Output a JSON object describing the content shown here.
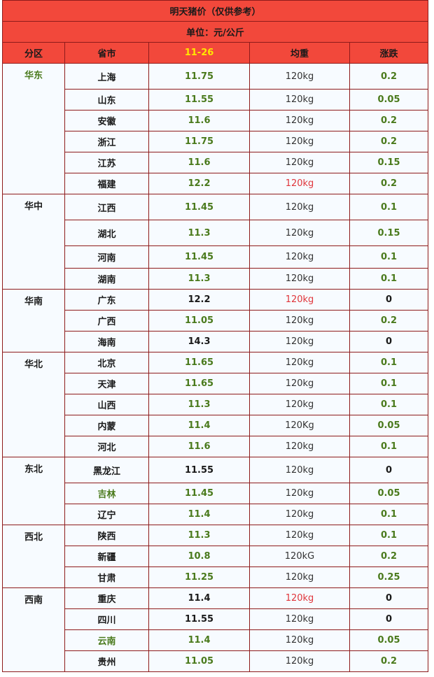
{
  "header": {
    "title": "明天猪价（仅供参考）",
    "unit": "单位：元/公斤",
    "columns": [
      "分区",
      "省市",
      "11-26",
      "均重",
      "涨跌"
    ]
  },
  "palette": {
    "green": "#4a7a1c",
    "red": "#e0353b",
    "black": "#1a1a1a",
    "yellow": "#ffe600",
    "region_green": "#4a7a1c"
  },
  "table": {
    "groups": [
      {
        "region": "华东",
        "region_color": "region_green",
        "rows": [
          {
            "province": "上海",
            "price": 11.75,
            "weight": "120kg",
            "change": 0.2
          },
          {
            "province": "山东",
            "price": 11.55,
            "weight": "120kg",
            "change": 0.05
          },
          {
            "province": "安徽",
            "price": 11.6,
            "weight": "120kg",
            "change": 0.2
          },
          {
            "province": "浙江",
            "price": 11.75,
            "weight": "120kg",
            "change": 0.2
          },
          {
            "province": "江苏",
            "price": 11.6,
            "weight": "120kg",
            "change": 0.15
          },
          {
            "province": "福建",
            "price": 12.2,
            "weight": "120kg",
            "change": 0.2,
            "weight_color": "red"
          }
        ]
      },
      {
        "region": "华中",
        "rows": [
          {
            "province": "江西",
            "price": 11.45,
            "weight": "120kg",
            "change": 0.1
          },
          {
            "province": "湖北",
            "price": 11.3,
            "weight": "120kg",
            "change": 0.15
          },
          {
            "province": "河南",
            "price": 11.45,
            "weight": "120kg",
            "change": 0.1
          },
          {
            "province": "湖南",
            "price": 11.3,
            "weight": "120kg",
            "change": 0.1
          }
        ]
      },
      {
        "region": "华南",
        "rows": [
          {
            "province": "广东",
            "price": 12.2,
            "weight": "120kg",
            "change": 0,
            "price_color": "black",
            "weight_color": "red",
            "change_color": "black"
          },
          {
            "province": "广西",
            "price": 11.05,
            "weight": "120kg",
            "change": 0.2
          },
          {
            "province": "海南",
            "price": 14.3,
            "weight": "120kg",
            "change": 0,
            "price_color": "black",
            "change_color": "black"
          }
        ]
      },
      {
        "region": "华北",
        "rows": [
          {
            "province": "北京",
            "price": 11.65,
            "weight": "120kg",
            "change": 0.1
          },
          {
            "province": "天津",
            "price": 11.65,
            "weight": "120kg",
            "change": 0.1
          },
          {
            "province": "山西",
            "price": 11.3,
            "weight": "120kg",
            "change": 0.1
          },
          {
            "province": "内蒙",
            "price": 11.4,
            "weight": "120Kg",
            "change": 0.05
          },
          {
            "province": "河北",
            "price": 11.6,
            "weight": "120kg",
            "change": 0.1
          }
        ]
      },
      {
        "region": "东北",
        "rows": [
          {
            "province": "黑龙江",
            "price": 11.55,
            "weight": "120kg",
            "change": 0,
            "price_color": "black",
            "change_color": "black"
          },
          {
            "province": "吉林",
            "price": 11.45,
            "weight": "120kg",
            "change": 0.05,
            "province_color": "green"
          },
          {
            "province": "辽宁",
            "price": 11.4,
            "weight": "120kg",
            "change": 0.1
          }
        ]
      },
      {
        "region": "西北",
        "rows": [
          {
            "province": "陕西",
            "price": 11.3,
            "weight": "120kg",
            "change": 0.1
          },
          {
            "province": "新疆",
            "price": 10.8,
            "weight": "120kG",
            "change": 0.2
          },
          {
            "province": "甘肃",
            "price": 11.25,
            "weight": "120kg",
            "change": 0.25
          }
        ]
      },
      {
        "region": "西南",
        "rows": [
          {
            "province": "重庆",
            "price": 11.4,
            "weight": "120kg",
            "change": 0,
            "price_color": "black",
            "weight_color": "red",
            "change_color": "black"
          },
          {
            "province": "四川",
            "price": 11.55,
            "weight": "120kg",
            "change": 0,
            "price_color": "black",
            "change_color": "black"
          },
          {
            "province": "云南",
            "price": 11.4,
            "weight": "120kg",
            "change": 0.05,
            "province_color": "green"
          },
          {
            "province": "贵州",
            "price": 11.05,
            "weight": "120kg",
            "change": 0.2
          }
        ]
      }
    ]
  }
}
